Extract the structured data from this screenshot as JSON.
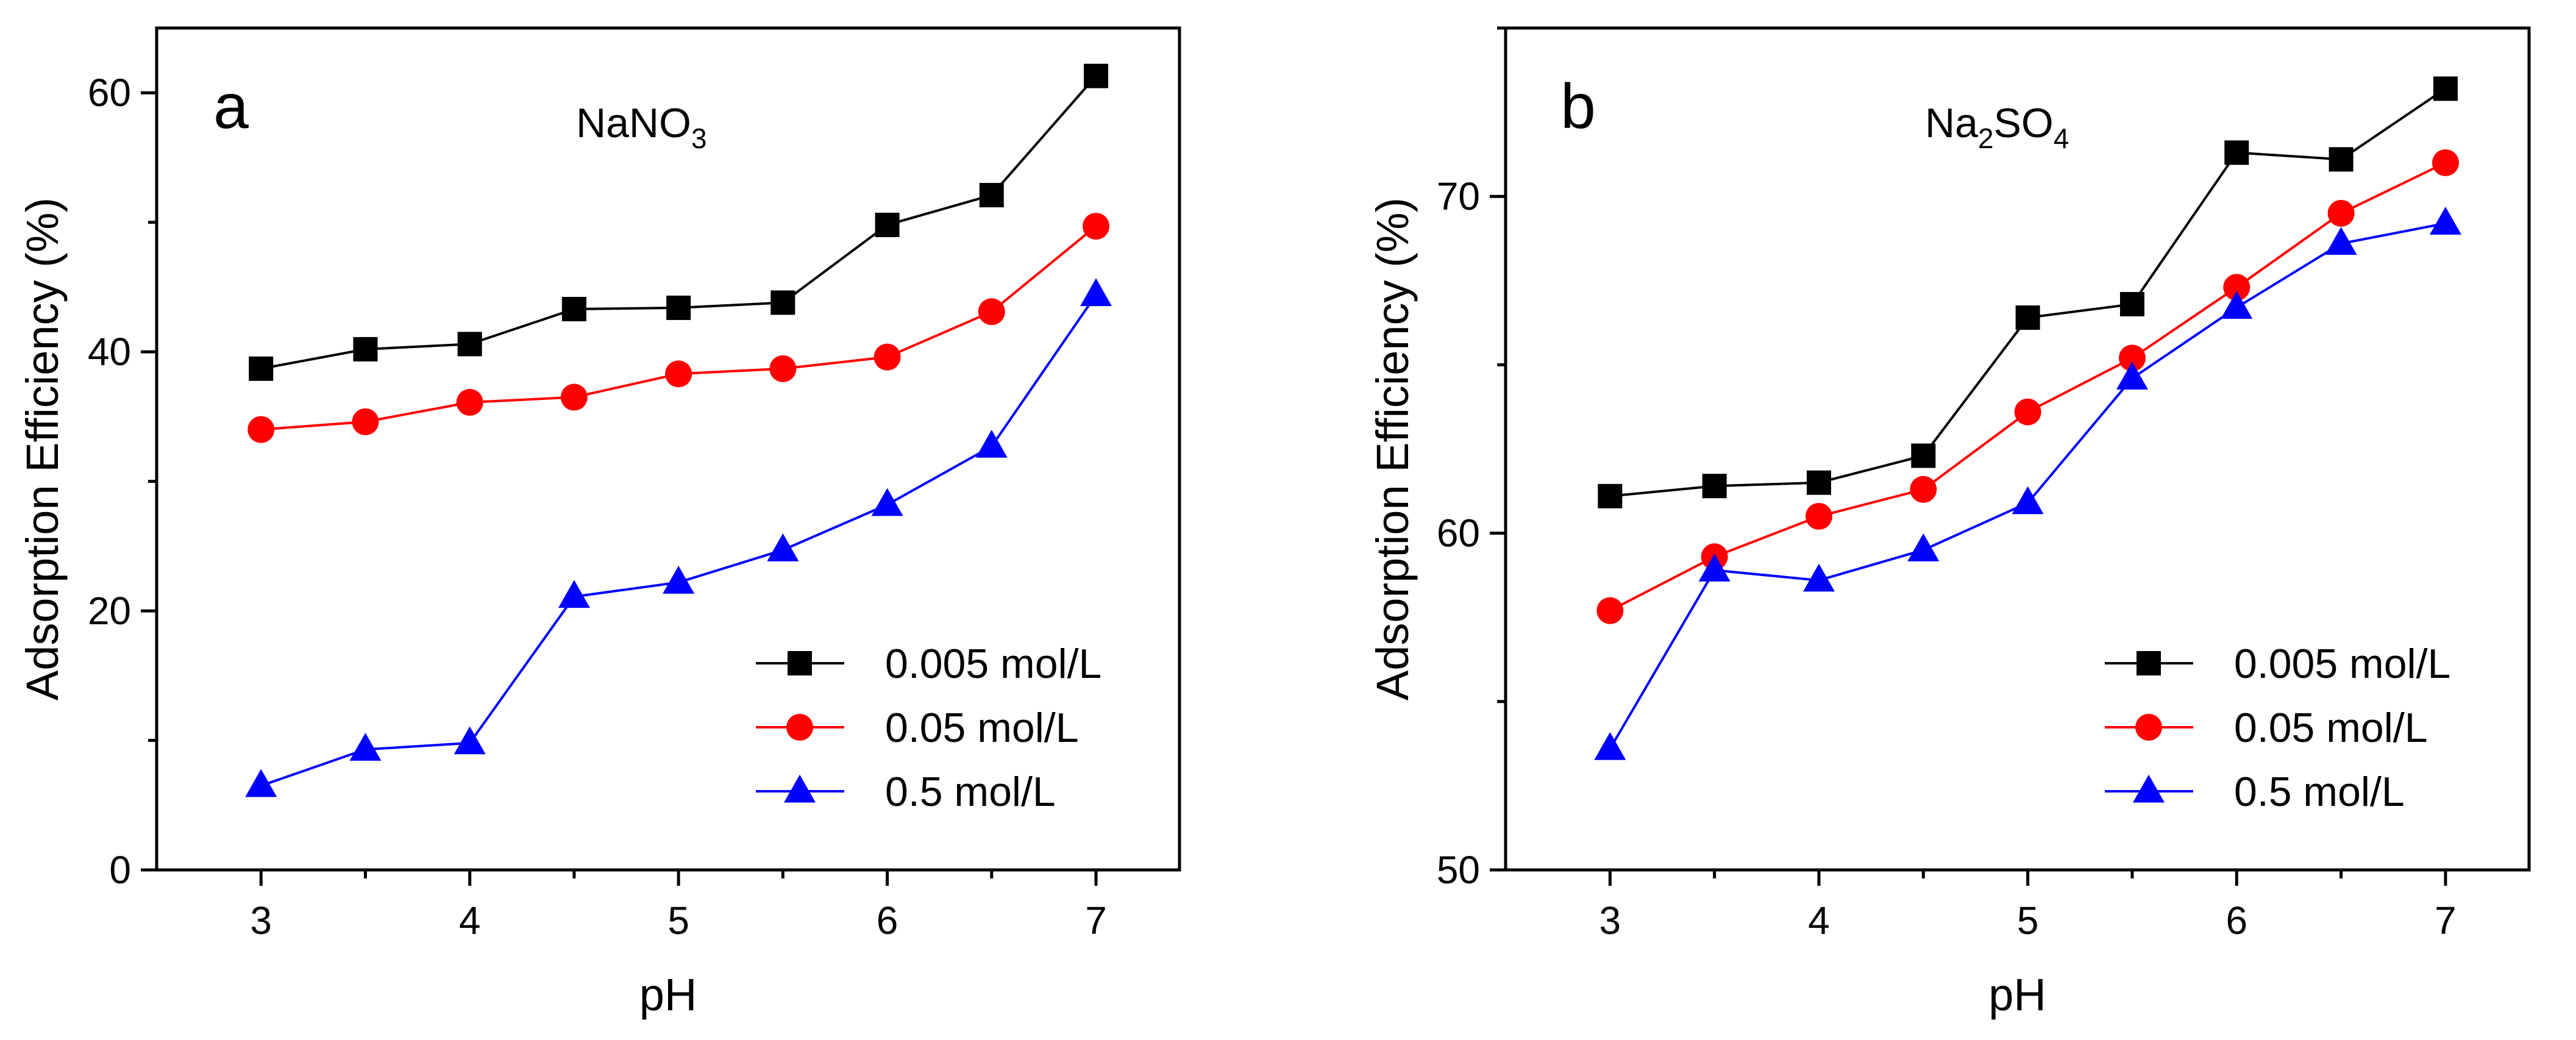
{
  "chart_data": [
    {
      "type": "line",
      "panel_label": "a",
      "salt": {
        "base": "NaNO",
        "sub": "3",
        "tail": ""
      },
      "xlabel": "pH",
      "ylabel": "Adsorption Efficiency (%)",
      "xlim": [
        2.5,
        7.4
      ],
      "ylim": [
        0,
        65
      ],
      "xticks": [
        3,
        4,
        5,
        6,
        7
      ],
      "yticks": [
        0,
        20,
        40,
        60
      ],
      "x": [
        3,
        3.5,
        4,
        4.5,
        5,
        5.5,
        6,
        6.5,
        7
      ],
      "series": [
        {
          "name": "0.005 mol/L",
          "marker": "square",
          "color": "#000000",
          "values": [
            38.7,
            40.2,
            40.6,
            43.3,
            43.4,
            43.8,
            49.8,
            52.1,
            61.3
          ]
        },
        {
          "name": "0.05 mol/L",
          "marker": "circle",
          "color": "#ff0000",
          "values": [
            34.0,
            34.6,
            36.1,
            36.5,
            38.3,
            38.7,
            39.6,
            43.1,
            49.7
          ]
        },
        {
          "name": "0.5 mol/L",
          "marker": "triangle",
          "color": "#0000ff",
          "values": [
            6.5,
            9.3,
            9.8,
            21.1,
            22.2,
            24.7,
            28.2,
            32.7,
            44.4
          ]
        }
      ],
      "legend_position": "bottom-right"
    },
    {
      "type": "line",
      "panel_label": "b",
      "salt": {
        "base": "Na",
        "sub": "2",
        "tail": "SO",
        "sub2": "4"
      },
      "xlabel": "pH",
      "ylabel": "Adsorption Efficiency (%)",
      "xlim": [
        2.5,
        7.4
      ],
      "ylim": [
        50,
        75
      ],
      "xticks": [
        3,
        4,
        5,
        6,
        7
      ],
      "yticks": [
        50,
        60,
        70
      ],
      "x": [
        3,
        3.5,
        4,
        4.5,
        5,
        5.5,
        6,
        6.5,
        7
      ],
      "series": [
        {
          "name": "0.005 mol/L",
          "marker": "square",
          "color": "#000000",
          "values": [
            61.1,
            61.4,
            61.5,
            62.3,
            66.4,
            66.8,
            71.3,
            71.1,
            73.2
          ]
        },
        {
          "name": "0.05 mol/L",
          "marker": "circle",
          "color": "#ff0000",
          "values": [
            57.7,
            59.3,
            60.5,
            61.3,
            63.6,
            65.2,
            67.3,
            69.5,
            71.0
          ]
        },
        {
          "name": "0.5 mol/L",
          "marker": "triangle",
          "color": "#0000ff",
          "values": [
            53.6,
            58.9,
            58.6,
            59.5,
            60.9,
            64.6,
            66.7,
            68.6,
            69.2
          ]
        }
      ],
      "legend_position": "bottom-right"
    }
  ]
}
